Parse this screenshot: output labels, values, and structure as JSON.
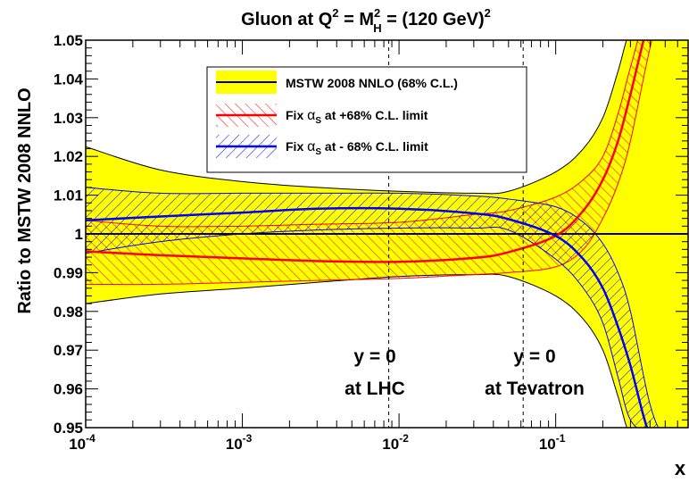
{
  "chart_data": {
    "type": "line",
    "title": {
      "prefix": "Gluon at Q",
      "q_exp": "2",
      "eq": " = M",
      "h_exp": "2",
      "h_sub": "H",
      "suffix": " = (120 GeV)",
      "suffix_exp": "2"
    },
    "xlabel": "x",
    "ylabel": "Ratio to MSTW 2008 NNLO",
    "x_scale": "log",
    "xlim": [
      0.0001,
      0.7
    ],
    "ylim": [
      0.95,
      1.05
    ],
    "x_ticks": [
      {
        "value": 0.0001,
        "base": "10",
        "exp": "-4"
      },
      {
        "value": 0.001,
        "base": "10",
        "exp": "-3"
      },
      {
        "value": 0.01,
        "base": "10",
        "exp": "-2"
      },
      {
        "value": 0.1,
        "base": "10",
        "exp": "-1"
      }
    ],
    "y_ticks": [
      {
        "value": 0.95,
        "label": "0.95"
      },
      {
        "value": 0.96,
        "label": "0.96"
      },
      {
        "value": 0.97,
        "label": "0.97"
      },
      {
        "value": 0.98,
        "label": "0.98"
      },
      {
        "value": 0.99,
        "label": "0.99"
      },
      {
        "value": 1.0,
        "label": "1"
      },
      {
        "value": 1.01,
        "label": "1.01"
      },
      {
        "value": 1.02,
        "label": "1.02"
      },
      {
        "value": 1.03,
        "label": "1.03"
      },
      {
        "value": 1.04,
        "label": "1.04"
      },
      {
        "value": 1.05,
        "label": "1.05"
      }
    ],
    "legend": {
      "placement": "top-center",
      "entries": [
        {
          "label": "MSTW 2008 NNLO (68% C.L.)"
        },
        {
          "label_pre": "Fix ",
          "alpha": "α",
          "alpha_sub": "S",
          "label_post": " at +68% C.L. limit"
        },
        {
          "label_pre": "Fix ",
          "alpha": "α",
          "alpha_sub": "S",
          "label_post": " at - 68% C.L. limit"
        }
      ]
    },
    "colors": {
      "band": "#ffff00",
      "central": "#000000",
      "plus": "#ff0000",
      "minus": "#0000ff"
    },
    "x": [
      0.0001,
      0.0003,
      0.001,
      0.003,
      0.01,
      0.03,
      0.05,
      0.1,
      0.15,
      0.2,
      0.25,
      0.3,
      0.4,
      0.5,
      0.7
    ],
    "series": [
      {
        "key": "central",
        "center": [
          1.0,
          1.0,
          1.0,
          1.0,
          1.0,
          1.0,
          1.0,
          1.0,
          1.0,
          1.0,
          1.0,
          1.0,
          1.0,
          1.0,
          1.0
        ],
        "upper": [
          1.0225,
          1.0165,
          1.0135,
          1.012,
          1.011,
          1.0105,
          1.011,
          1.016,
          1.022,
          1.03,
          1.042,
          1.053,
          1.062,
          1.062,
          1.062
        ],
        "lower": [
          0.982,
          0.9845,
          0.986,
          0.9875,
          0.989,
          0.9895,
          0.989,
          0.984,
          0.978,
          0.97,
          0.958,
          0.948,
          0.945,
          0.945,
          0.945
        ]
      },
      {
        "key": "plus",
        "center": [
          0.9955,
          0.9945,
          0.9937,
          0.993,
          0.9928,
          0.9938,
          0.9953,
          0.9995,
          1.006,
          1.014,
          1.024,
          1.036,
          1.056,
          1.062,
          1.062
        ],
        "upper": [
          1.0035,
          1.002,
          1.002,
          1.0025,
          1.003,
          1.005,
          1.006,
          1.0095,
          1.014,
          1.02,
          1.031,
          1.043,
          1.06,
          1.062,
          1.062
        ],
        "lower": [
          0.987,
          0.987,
          0.9875,
          0.988,
          0.9885,
          0.9895,
          0.99,
          0.9915,
          0.996,
          1.004,
          1.013,
          1.024,
          1.048,
          1.062,
          1.062
        ]
      },
      {
        "key": "minus",
        "center": [
          1.0035,
          1.0045,
          1.0055,
          1.0065,
          1.0065,
          1.0053,
          1.0038,
          0.9995,
          0.9935,
          0.986,
          0.976,
          0.966,
          0.948,
          0.948,
          0.948
        ],
        "upper": [
          1.012,
          1.0105,
          1.0105,
          1.0105,
          1.0105,
          1.0098,
          1.009,
          1.007,
          1.003,
          0.9975,
          0.99,
          0.98,
          0.956,
          0.948,
          0.948
        ],
        "lower": [
          0.995,
          0.998,
          1.0,
          1.001,
          1.0015,
          1.0015,
          1.001,
          0.9935,
          0.986,
          0.977,
          0.963,
          0.952,
          0.948,
          0.948,
          0.948
        ]
      }
    ],
    "reference_lines": [
      {
        "x": 0.0086,
        "label1": "y = 0",
        "label2": "at LHC"
      },
      {
        "x": 0.062,
        "label1": "y = 0",
        "label2": "at Tevatron"
      }
    ]
  }
}
